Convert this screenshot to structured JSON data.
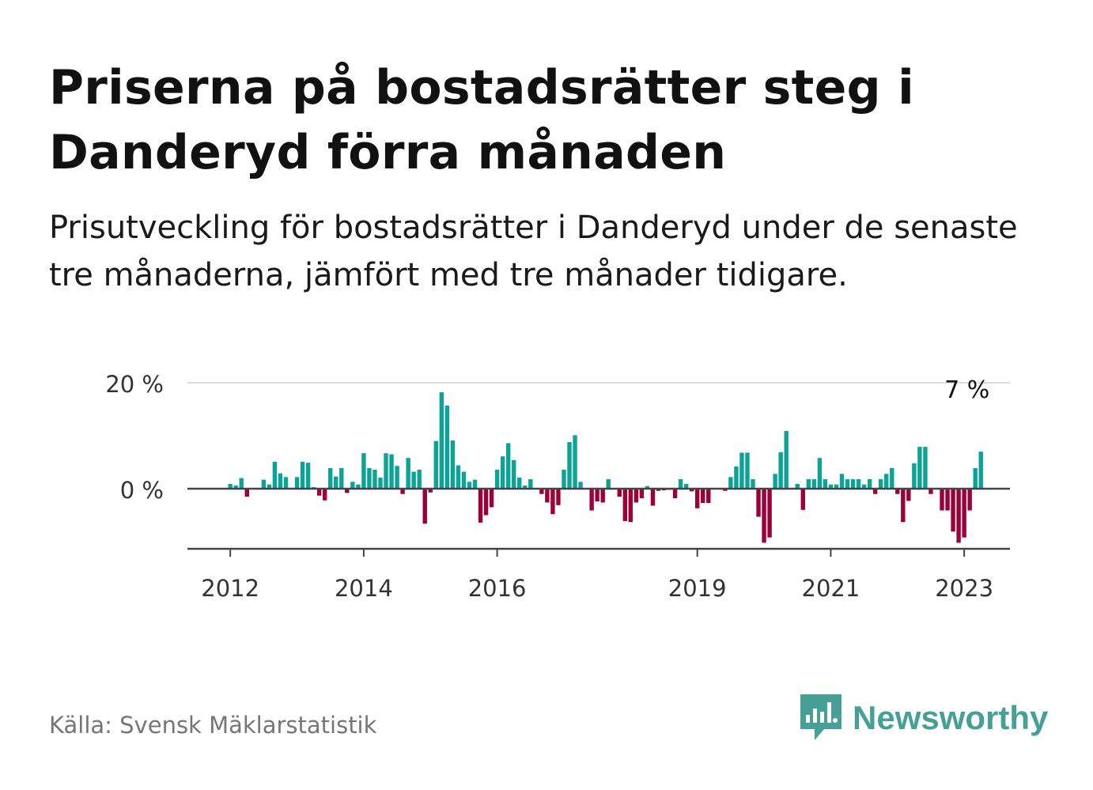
{
  "title": "Priserna på bostadsrätter steg i Danderyd förra månaden",
  "subtitle": "Prisutveckling för bostadsrätter i Danderyd under de senaste tre månaderna, jämfört med tre månader tidigare.",
  "source": "Källa: Svensk Mäklarstatistik",
  "brand": {
    "name": "Newsworthy",
    "icon": "newsworthy-logo-icon",
    "color": "#46a098"
  },
  "colors": {
    "positive": "#0ba398",
    "negative": "#9c0038",
    "grid": "#dcdcdc",
    "axis": "#444444"
  },
  "chart_data": {
    "type": "bar",
    "title": "",
    "xlabel": "",
    "ylabel": "",
    "ylim": [
      -11,
      20
    ],
    "y_ticks": [
      0,
      20
    ],
    "y_tick_labels": [
      "0 %",
      "20 %"
    ],
    "x_tick_labels": [
      "2012",
      "2014",
      "2016",
      "2019",
      "2021",
      "2023"
    ],
    "x_tick_dates": [
      "2012-01",
      "2014-01",
      "2016-01",
      "2019-01",
      "2021-01",
      "2023-01"
    ],
    "start": "2011-07",
    "end": "2023-01",
    "annotation": {
      "text": "7 %",
      "date": "2023-01",
      "value": 7
    },
    "values": [
      0,
      0,
      0,
      0,
      0,
      0,
      0.9,
      0.6,
      2,
      -1.5,
      0,
      0.1,
      1.7,
      0.8,
      5.1,
      2.9,
      2.2,
      0,
      2.2,
      5.1,
      4.9,
      0.3,
      -1.3,
      -2.2,
      3.9,
      2.3,
      3.9,
      -0.8,
      1.3,
      0.8,
      6.7,
      3.9,
      3.6,
      2.1,
      6.7,
      6.5,
      4.3,
      -1,
      5.8,
      3.2,
      3.6,
      -6.6,
      -0.7,
      9,
      18.2,
      15.7,
      9.1,
      4.4,
      3.2,
      1.3,
      1.7,
      -6.4,
      -5,
      -3.5,
      3.6,
      6.1,
      8.6,
      5.4,
      2.1,
      0.6,
      1.8,
      0,
      -1,
      -2.6,
      -4.8,
      -3.1,
      3.6,
      8.8,
      10.1,
      1.3,
      0,
      -4.1,
      -2.4,
      -2.6,
      1.8,
      0,
      -1.5,
      -6.1,
      -6.3,
      -2.6,
      -1.8,
      0.5,
      -3.2,
      -0.4,
      -0.3,
      -0.2,
      -1.8,
      1.8,
      0.9,
      -0.5,
      -3.7,
      -2.7,
      -2.7,
      0,
      0,
      -0.4,
      2.2,
      4.2,
      6.8,
      6.8,
      1.8,
      -5.3,
      -10.2,
      -9.2,
      2.8,
      6.9,
      10.9,
      0,
      0.9,
      -4,
      1.8,
      1.8,
      5.8,
      1.8,
      0.8,
      0.8,
      2.8,
      1.8,
      1.8,
      1.8,
      0.8,
      1.8,
      -1,
      1.8,
      2.8,
      3.9,
      -1,
      -6.3,
      -2.3,
      4.8,
      7.9,
      7.9,
      -1,
      0,
      -4.1,
      -4.1,
      -8.1,
      -10.2,
      -9.2,
      -4.1,
      3.9,
      7
    ]
  }
}
